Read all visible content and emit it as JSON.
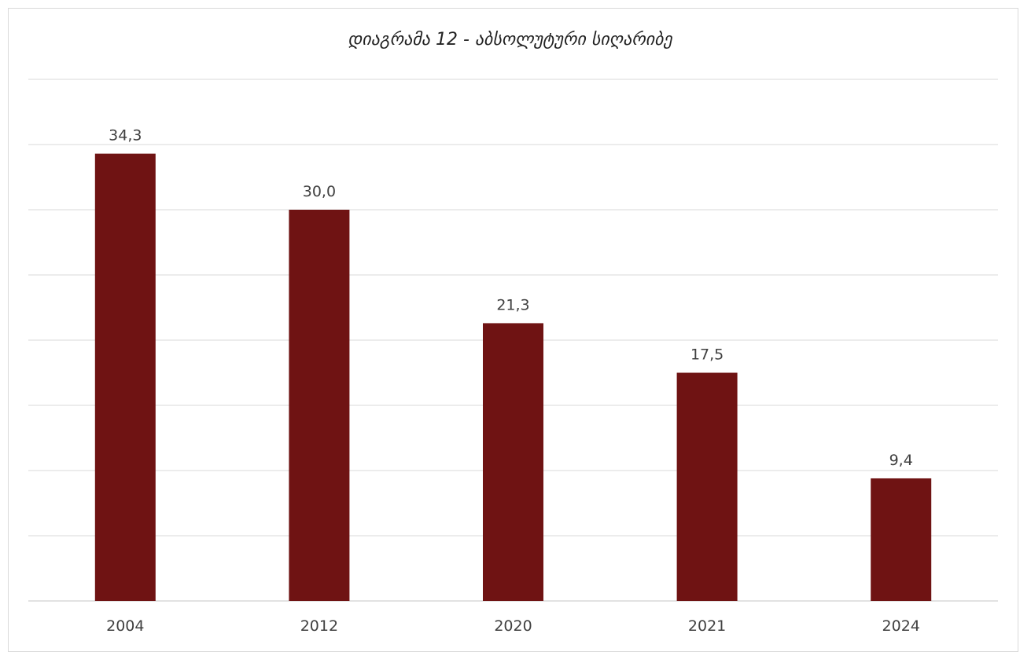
{
  "chart_data": {
    "type": "bar",
    "title": "დიაგრამა 12 - აბსოლუტური სიღარიბე",
    "xlabel": "",
    "ylabel": "",
    "categories": [
      "2004",
      "2012",
      "2020",
      "2021",
      "2024"
    ],
    "values": [
      34.3,
      30.0,
      21.3,
      17.5,
      9.4
    ],
    "value_labels": [
      "34,3",
      "30,0",
      "21,3",
      "17,5",
      "9,4"
    ],
    "ylim": [
      0,
      40
    ],
    "grid": true,
    "legend": "none",
    "colors": {
      "bar": "#6f1313",
      "grid": "#d9d9d9",
      "text": "#404040"
    }
  }
}
